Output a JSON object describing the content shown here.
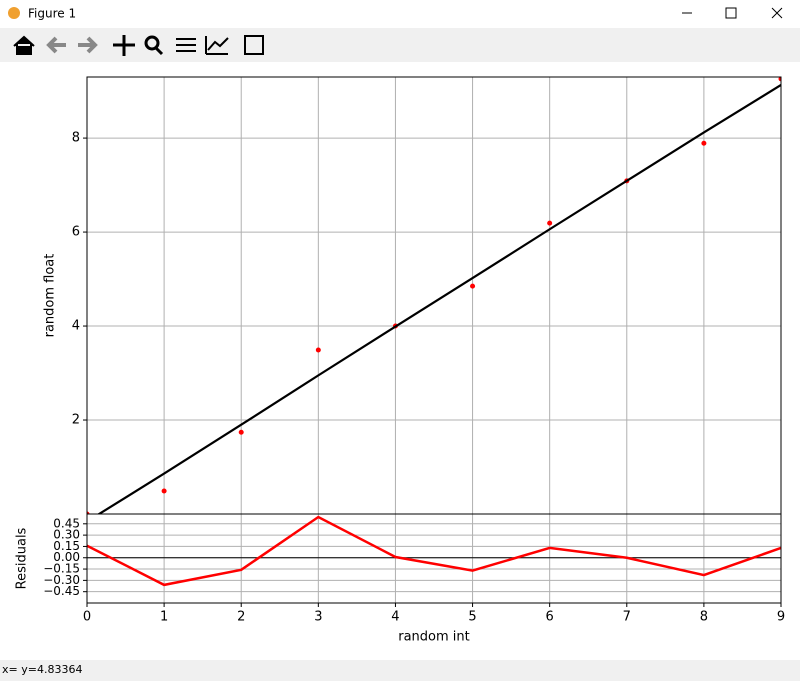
{
  "window": {
    "title": "Figure 1"
  },
  "chart_data": [
    {
      "type": "scatter",
      "ylabel": "random float",
      "x": [
        0,
        1,
        2,
        3,
        4,
        5,
        6,
        7,
        8,
        9
      ],
      "series": [
        {
          "values": [
            0,
            0.49,
            1.74,
            3.49,
            4.0,
            4.85,
            6.19,
            7.09,
            7.89,
            9.26
          ],
          "color": "#ff0000",
          "style": "markers"
        },
        {
          "values": [
            -0.16,
            0.86,
            1.9,
            2.95,
            3.99,
            5.02,
            6.06,
            7.09,
            8.12,
            9.13
          ],
          "color": "#000000",
          "style": "line"
        }
      ],
      "xlim": [
        0,
        9
      ],
      "ylim": [
        0,
        9.3
      ],
      "yticks": [
        2,
        4,
        6,
        8
      ],
      "grid": true
    },
    {
      "type": "line",
      "xlabel": "random int",
      "ylabel": "Residuals",
      "x": [
        0,
        1,
        2,
        3,
        4,
        5,
        6,
        7,
        8,
        9
      ],
      "values": [
        0.16,
        -0.36,
        -0.16,
        0.54,
        0.01,
        -0.17,
        0.13,
        0.0,
        -0.23,
        0.13
      ],
      "color": "#ff0000",
      "hline": 0,
      "xlim": [
        0,
        9
      ],
      "ylim": [
        -0.6,
        0.58
      ],
      "xticks": [
        0,
        1,
        2,
        3,
        4,
        5,
        6,
        7,
        8,
        9
      ],
      "yticks": [
        {
          "value": -0.45,
          "label": "−0.45"
        },
        {
          "value": -0.3,
          "label": "−0.30"
        },
        {
          "value": -0.15,
          "label": "−0.15"
        },
        {
          "value": 0,
          "label": "0.00"
        },
        0.15,
        {
          "value": 0.3,
          "label": "0.30"
        },
        0.45
      ],
      "grid": true
    }
  ],
  "status_bar": {
    "text": "x= y=4.83364"
  }
}
